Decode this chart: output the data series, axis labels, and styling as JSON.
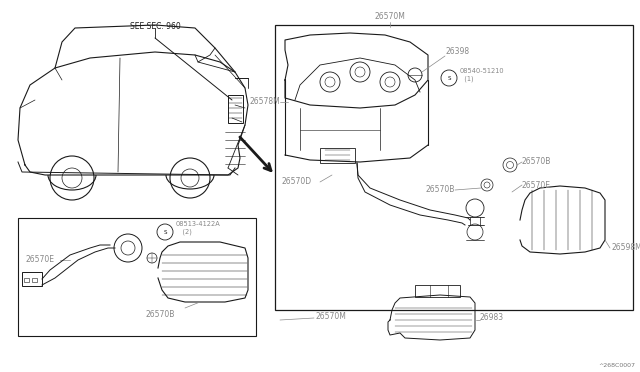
{
  "bg_color": "#ffffff",
  "fig_width": 6.4,
  "fig_height": 3.72,
  "dpi": 100,
  "watermark": "^268C0007",
  "labels": {
    "see_sec": "SEE SEC. 960",
    "part_26570M_top": "26570M",
    "part_26398": "26398",
    "part_08540": "08540-51210\n  (1)",
    "part_26578M": "26578M",
    "part_26570B_mid": "26570B",
    "part_26570B_right": "26570B",
    "part_26570E_right": "26570E",
    "part_26570D": "26570D",
    "part_26598M": "26598M",
    "part_26570E_left": "26570E",
    "part_08513": "08513-4122A\n   (2)",
    "part_26570B_bot": "26570B",
    "part_26570M_bot": "26570M",
    "part_26983": "26983"
  },
  "font_size_label": 5.5,
  "font_size_small": 4.8,
  "line_color": "#1a1a1a",
  "line_color_gray": "#888888"
}
